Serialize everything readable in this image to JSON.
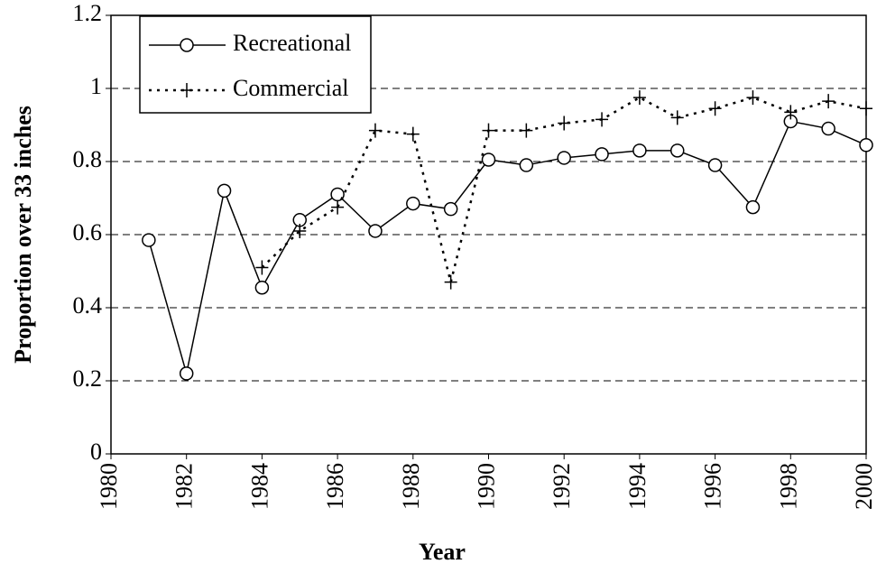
{
  "chart_data": {
    "type": "line",
    "x_label": "Year",
    "y_label": "Proportion over 33 inches",
    "x": [
      1981,
      1982,
      1983,
      1984,
      1985,
      1986,
      1987,
      1988,
      1989,
      1990,
      1991,
      1992,
      1993,
      1994,
      1995,
      1996,
      1997,
      1998,
      1999,
      2000
    ],
    "series": [
      {
        "name": "Recreational",
        "color": "#000000",
        "line_style": "solid",
        "marker": "circle",
        "values": [
          0.585,
          0.22,
          0.72,
          0.455,
          0.64,
          0.71,
          0.61,
          0.685,
          0.67,
          0.805,
          0.79,
          0.81,
          0.82,
          0.83,
          0.83,
          0.79,
          0.675,
          0.91,
          0.89,
          0.845
        ]
      },
      {
        "name": "Commercial",
        "color": "#000000",
        "line_style": "dotted",
        "marker": "plus",
        "values": [
          null,
          null,
          null,
          0.51,
          0.61,
          0.675,
          0.885,
          0.875,
          0.47,
          0.885,
          0.885,
          0.905,
          0.915,
          0.975,
          0.92,
          0.945,
          0.975,
          0.935,
          0.965,
          0.945
        ]
      }
    ],
    "xlim": [
      1980,
      2000
    ],
    "xticks": [
      1980,
      1982,
      1984,
      1986,
      1988,
      1990,
      1992,
      1994,
      1996,
      1998,
      2000
    ],
    "ylim": [
      0,
      1.2
    ],
    "yticks": [
      0,
      0.2,
      0.4,
      0.6,
      0.8,
      1,
      1.2
    ],
    "grid": true,
    "legend_position": "upper-left"
  }
}
